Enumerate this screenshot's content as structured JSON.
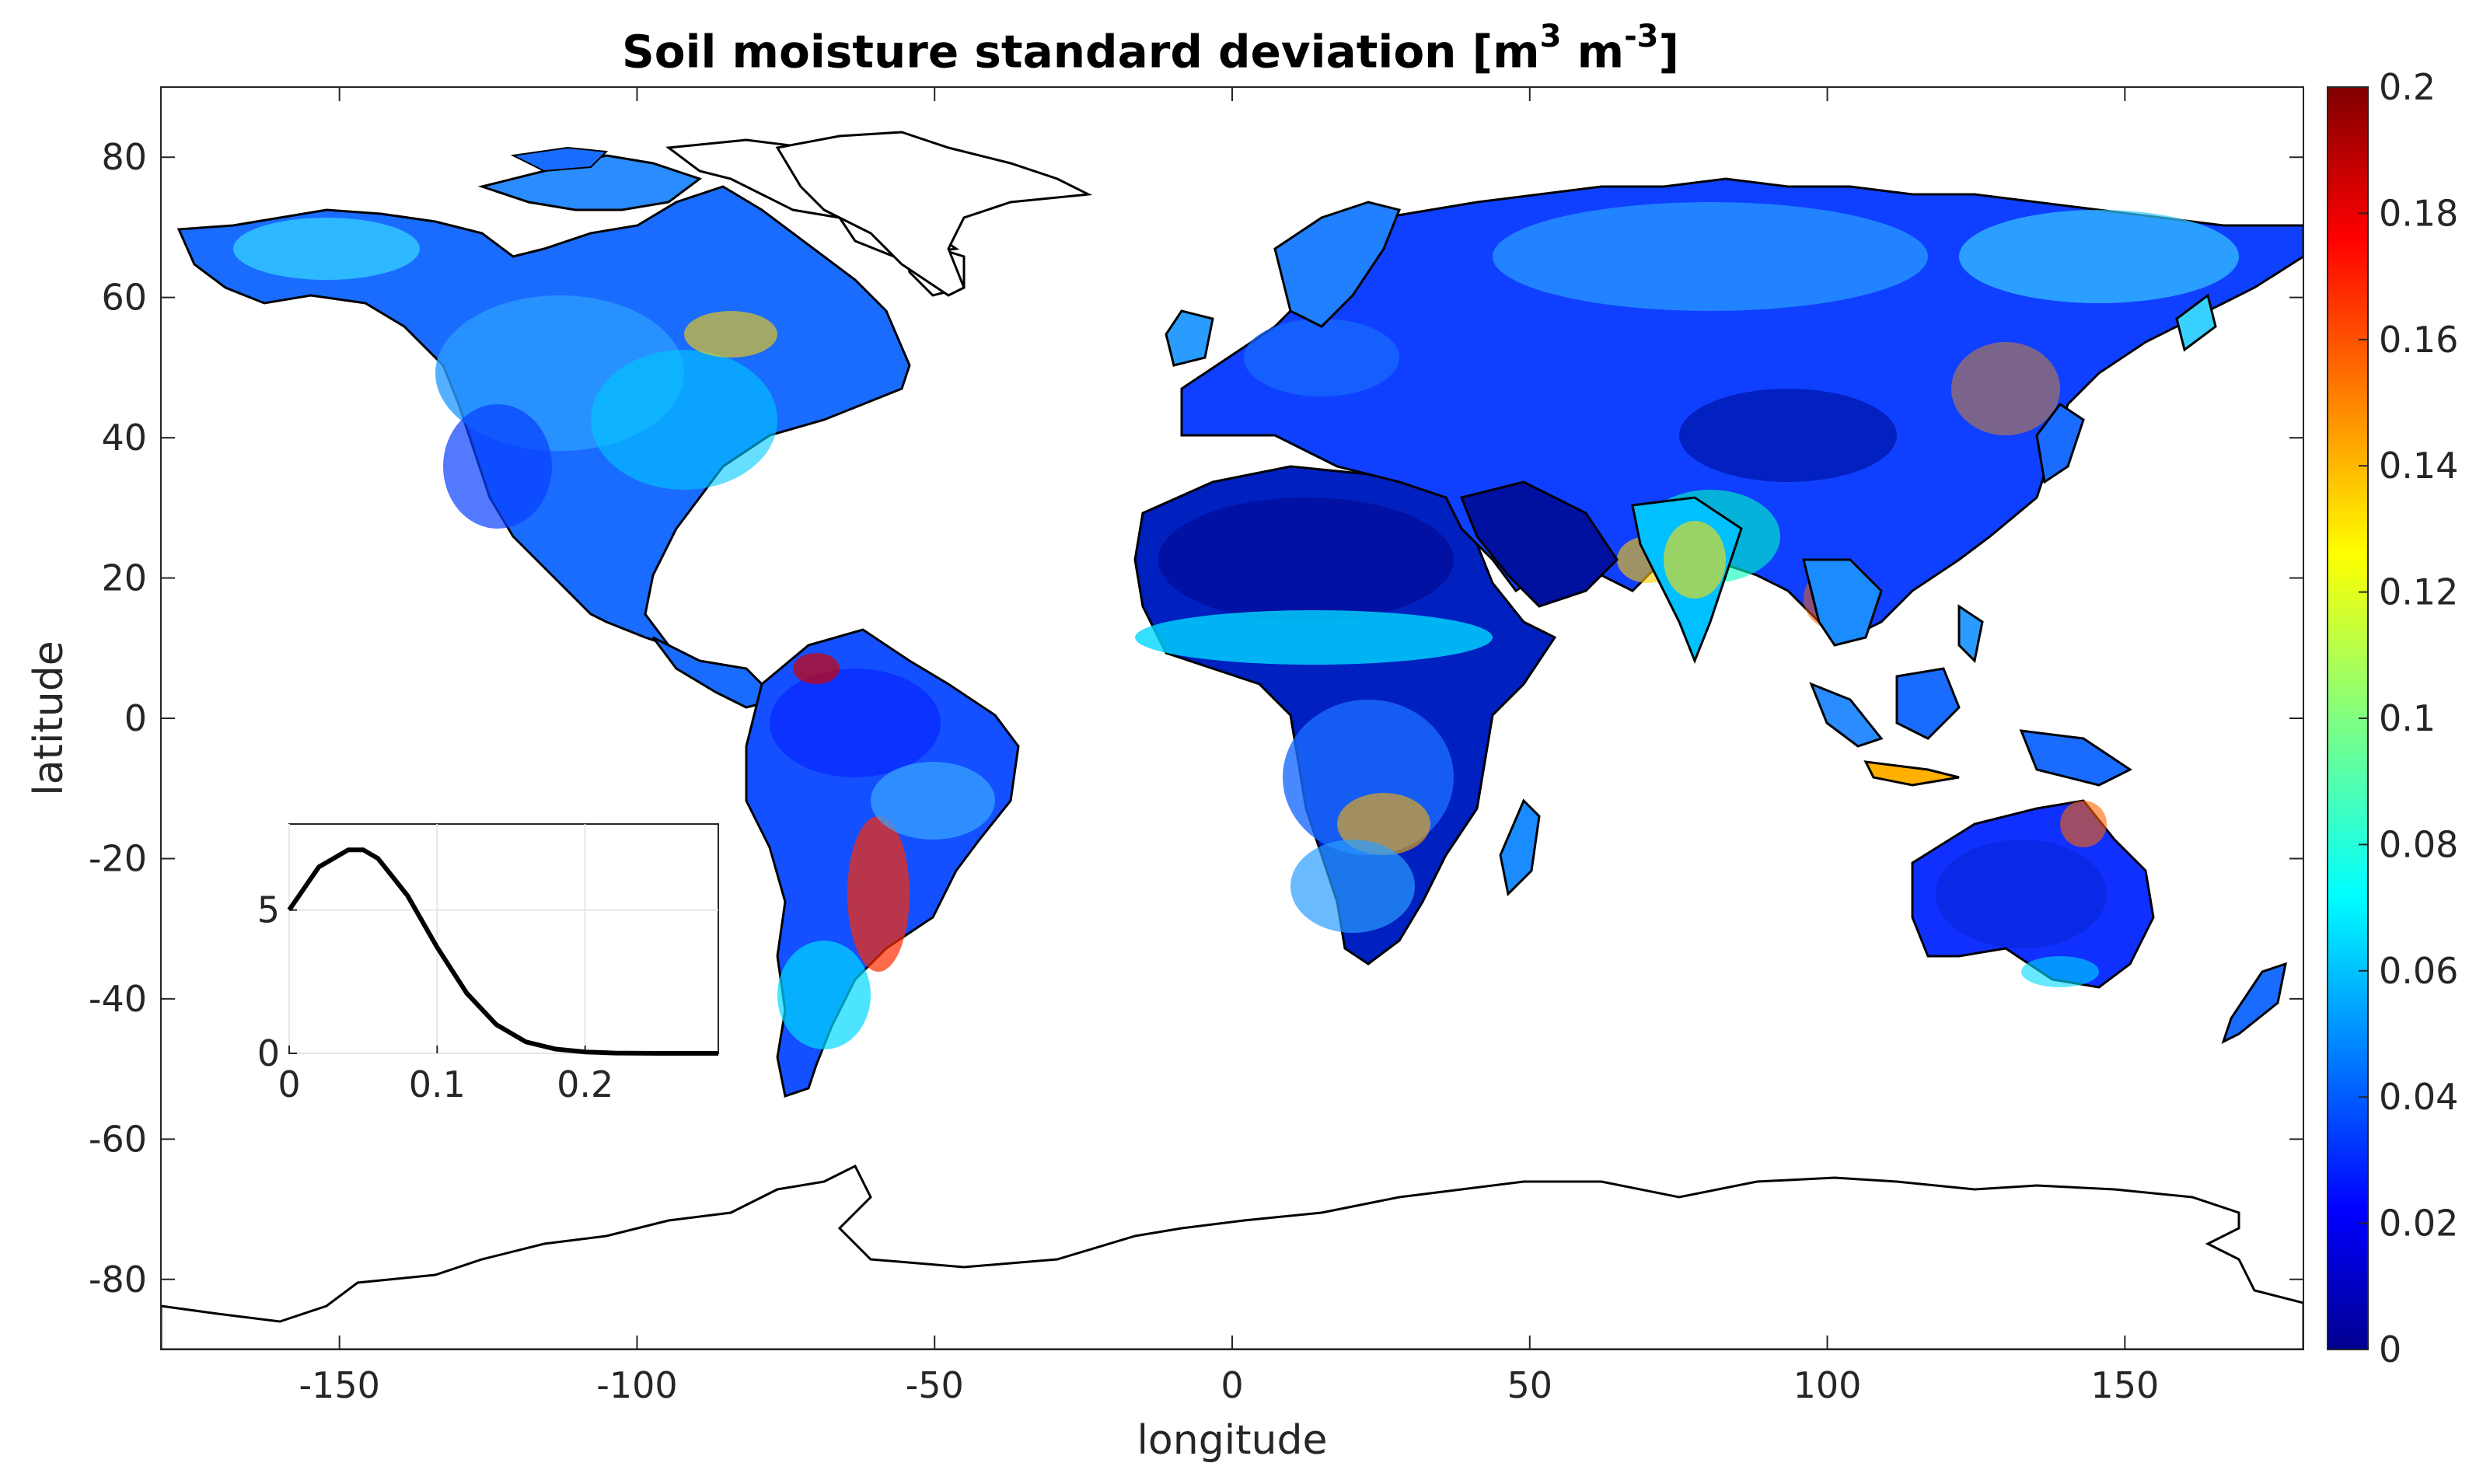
{
  "title": {
    "text": "Soil moisture standard deviation [m",
    "sup1": "3",
    "mid": " m",
    "sup2": "-3",
    "end": "]"
  },
  "map": {
    "xlabel": "longitude",
    "ylabel": "latitude",
    "xlim": [
      -180,
      180
    ],
    "ylim": [
      -90,
      90
    ],
    "xticks": [
      -150,
      -100,
      -50,
      0,
      50,
      100,
      150
    ],
    "yticks": [
      80,
      60,
      40,
      20,
      0,
      -20,
      -40,
      -60,
      -80
    ],
    "coastlines": true,
    "colormap": "jet"
  },
  "colorbar": {
    "range": [
      0,
      0.2
    ],
    "ticks": [
      "0.2",
      "0.18",
      "0.16",
      "0.14",
      "0.12",
      "0.1",
      "0.08",
      "0.06",
      "0.04",
      "0.02",
      "0"
    ]
  },
  "chart_data": {
    "type": "line",
    "description_of_marks": "inset probability density curve of standard deviation",
    "x": [
      0,
      0.02,
      0.04,
      0.05,
      0.06,
      0.08,
      0.1,
      0.12,
      0.14,
      0.16,
      0.18,
      0.2,
      0.22,
      0.25,
      0.29
    ],
    "y": [
      5.0,
      6.5,
      7.1,
      7.1,
      6.8,
      5.5,
      3.7,
      2.1,
      1.0,
      0.4,
      0.15,
      0.05,
      0.01,
      0.0,
      0.0
    ],
    "xlim": [
      0,
      0.29
    ],
    "ylim": [
      0,
      8
    ],
    "xticks": [
      "0",
      "0.1",
      "0.2"
    ],
    "yticks": [
      "0",
      "5"
    ],
    "grid": true
  },
  "colors": {
    "coast": "#000000",
    "axis": "#262626",
    "grid": "#e6e6e6"
  }
}
